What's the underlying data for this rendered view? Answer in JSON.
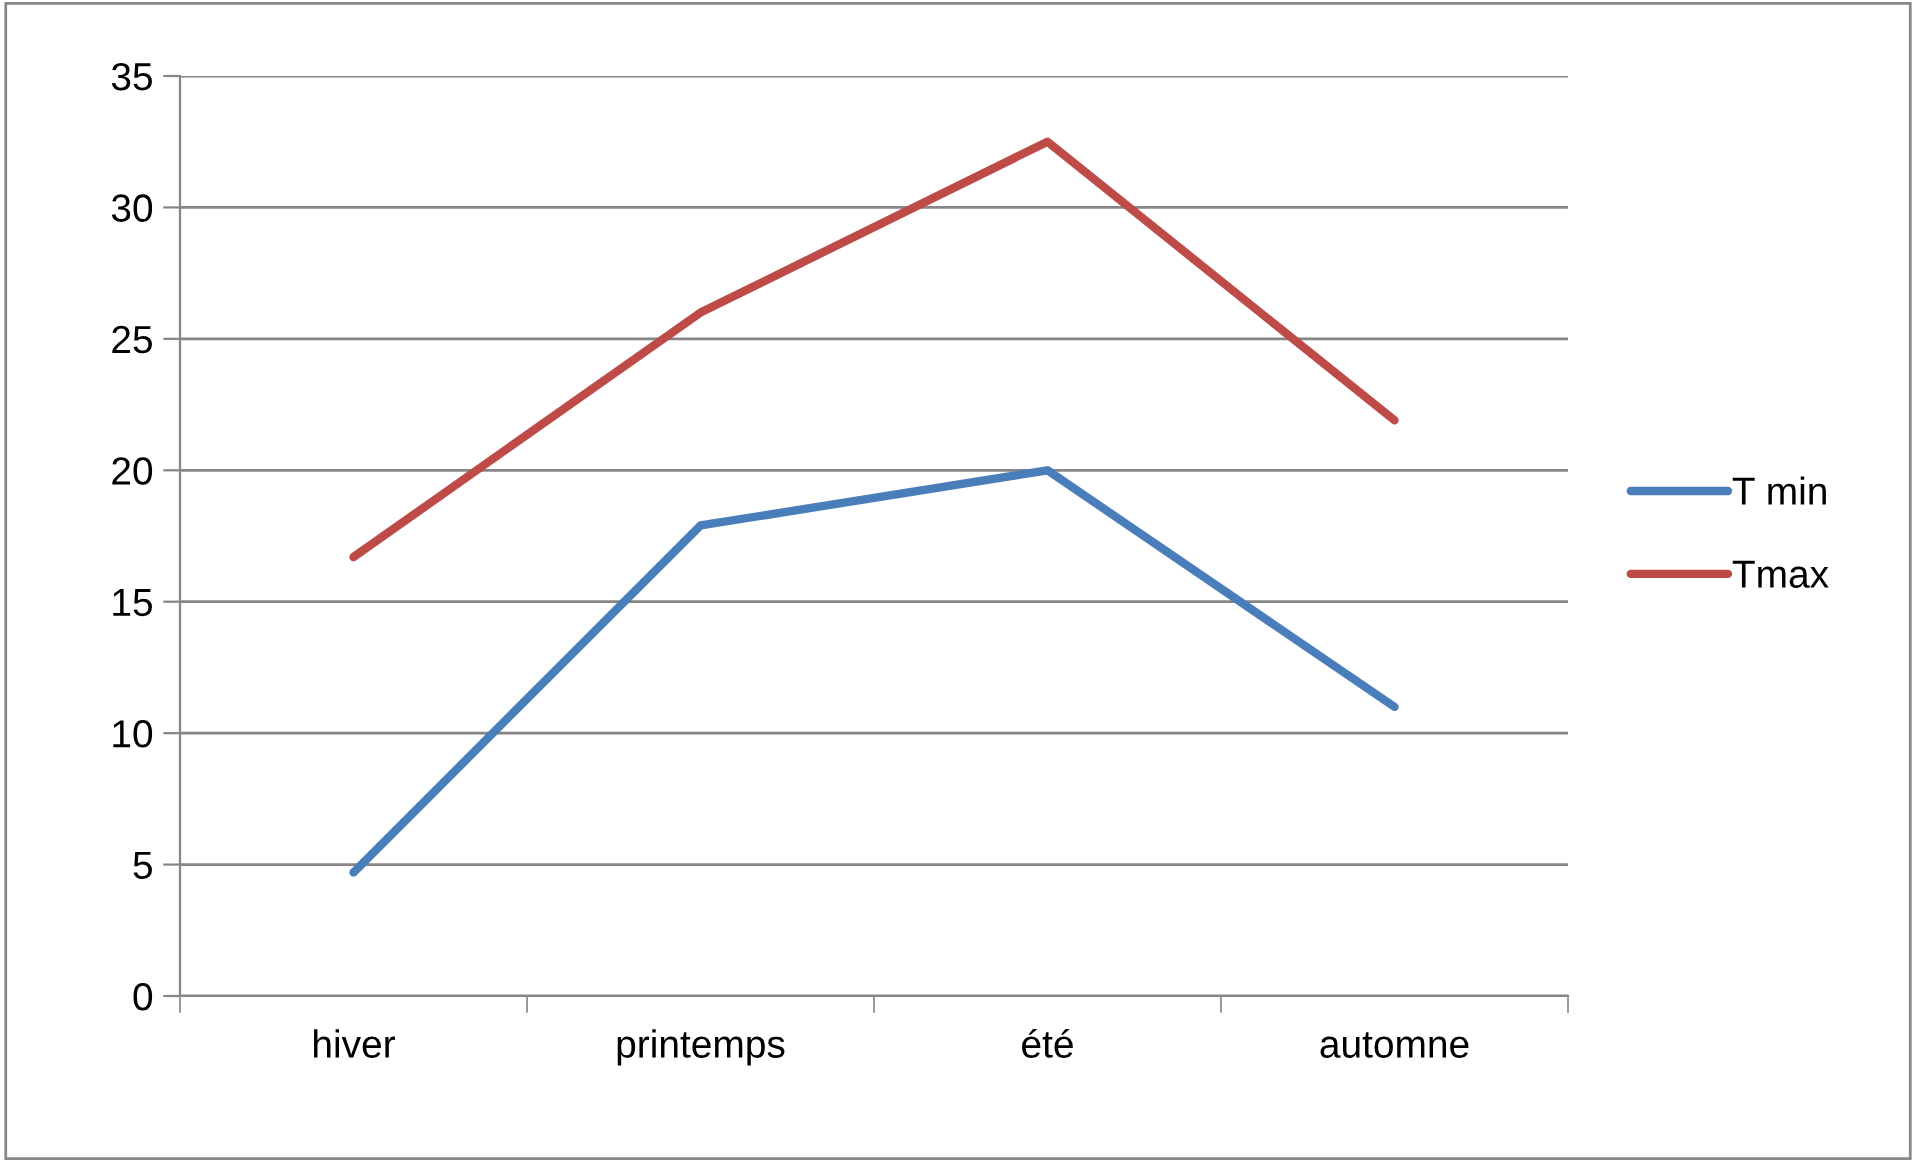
{
  "chart_data": {
    "type": "line",
    "categories": [
      "hiver",
      "printemps",
      "été",
      "automne"
    ],
    "series": [
      {
        "name": "T min",
        "color": "#4a7ebb",
        "values": [
          4.7,
          17.9,
          20.0,
          11.0
        ]
      },
      {
        "name": "Tmax",
        "color": "#be4b48",
        "values": [
          16.7,
          26.0,
          32.5,
          21.9
        ]
      }
    ],
    "ylim": [
      0,
      35
    ],
    "yticks": [
      0,
      5,
      10,
      15,
      20,
      25,
      30,
      35
    ],
    "grid": "y",
    "legend": "right",
    "marker": "none",
    "line_style": "solid"
  }
}
